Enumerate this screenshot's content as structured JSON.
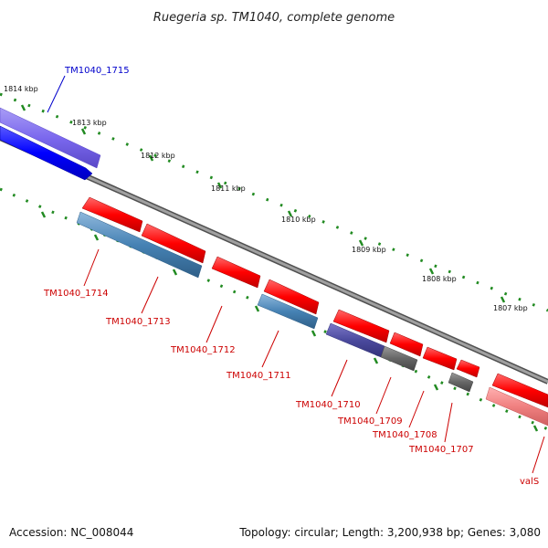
{
  "title": "Ruegeria sp. TM1040, complete genome",
  "footer": {
    "accession": "Accession: NC_008044",
    "summary": "Topology: circular; Length: 3,200,938 bp; Genes: 3,080"
  },
  "ruler_labels": [
    {
      "text": "1814 kbp"
    },
    {
      "text": "1813 kbp"
    },
    {
      "text": "1812 kbp"
    },
    {
      "text": "1811 kbp"
    },
    {
      "text": "1810 kbp"
    },
    {
      "text": "1809 kbp"
    },
    {
      "text": "1808 kbp"
    },
    {
      "text": "1807 kbp"
    }
  ],
  "genes": [
    {
      "name": "TM1040_1715",
      "color": "#0000cc"
    },
    {
      "name": "TM1040_1714",
      "color": "#cc0000"
    },
    {
      "name": "TM1040_1713",
      "color": "#cc0000"
    },
    {
      "name": "TM1040_1712",
      "color": "#cc0000"
    },
    {
      "name": "TM1040_1711",
      "color": "#cc0000"
    },
    {
      "name": "TM1040_1710",
      "color": "#cc0000"
    },
    {
      "name": "TM1040_1709",
      "color": "#cc0000"
    },
    {
      "name": "TM1040_1708",
      "color": "#cc0000"
    },
    {
      "name": "TM1040_1707",
      "color": "#cc0000"
    },
    {
      "name": "valS",
      "color": "#cc0000"
    }
  ],
  "colors": {
    "forward_gene": "#ff0000",
    "reverse_gene": "#0000ff",
    "backbone": "#808080",
    "ruler_tick": "#228b22",
    "cds_forward": "#4682b4",
    "cds_reverse": "#7b68ee",
    "pseudo": "#666666"
  }
}
